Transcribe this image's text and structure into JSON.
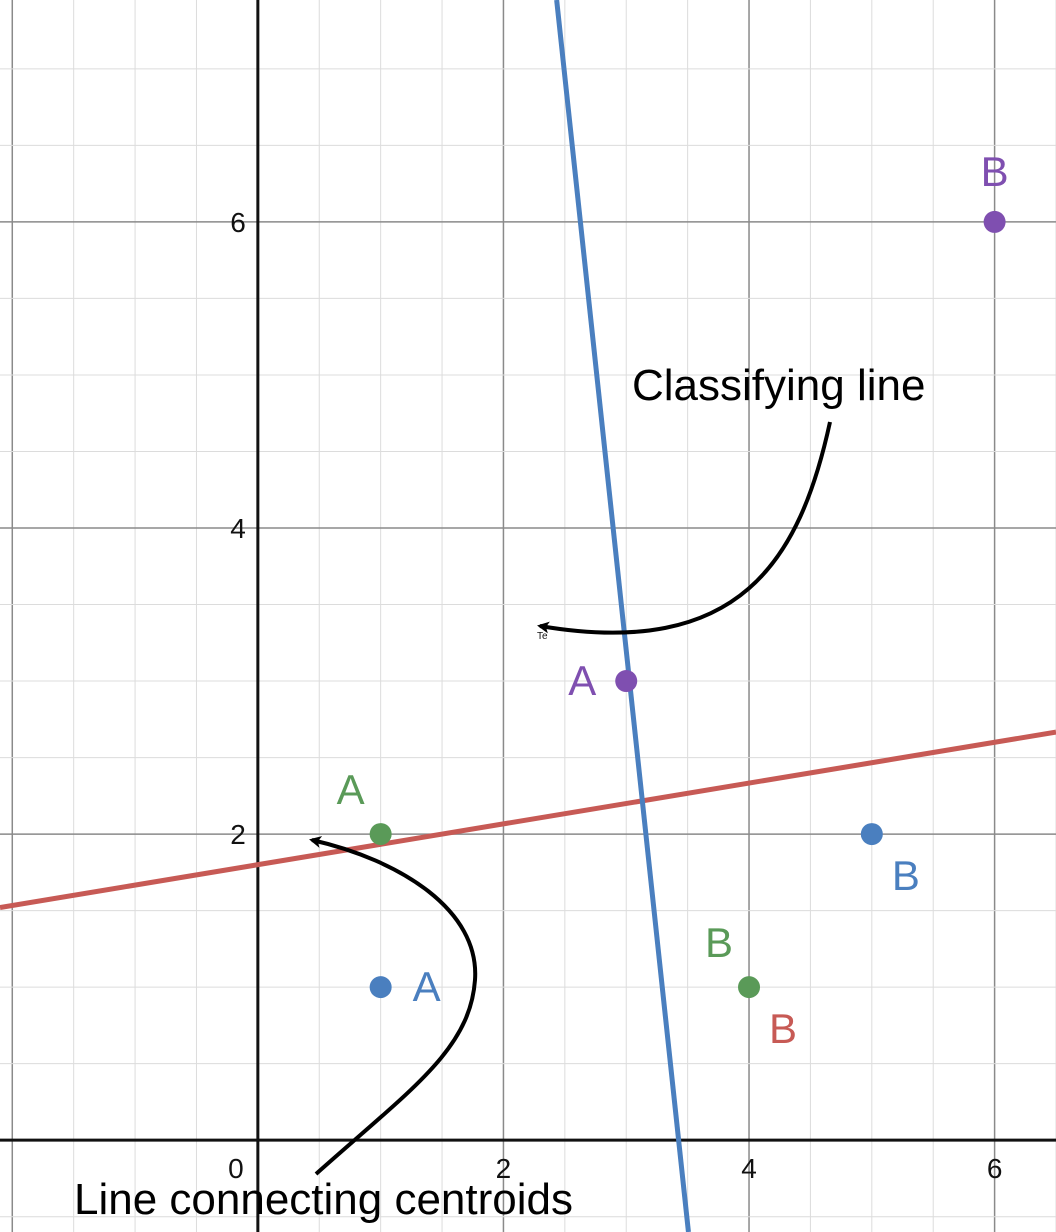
{
  "chart_data": {
    "type": "scatter",
    "xlim": [
      -2.1,
      6.5
    ],
    "ylim": [
      -0.6,
      7.45
    ],
    "x_ticks": [
      0,
      2,
      4,
      6
    ],
    "y_ticks": [
      2,
      4,
      6
    ],
    "x_tick_labels": [
      "0",
      "2",
      "4",
      "6"
    ],
    "y_tick_labels": [
      "2",
      "4",
      "6"
    ],
    "grid": true,
    "minor_grid_step": 0.5,
    "points": [
      {
        "x": 1,
        "y": 1,
        "label": "A",
        "color": "#4a7fbf",
        "label_pos": "right"
      },
      {
        "x": 5,
        "y": 2,
        "label": "B",
        "color": "#4a7fbf",
        "label_pos": "below-right"
      },
      {
        "x": 1,
        "y": 2,
        "label": "A",
        "color": "#5a9a58",
        "label_pos": "above-left"
      },
      {
        "x": 4,
        "y": 1,
        "label": "B",
        "color": "#5a9a58",
        "label_pos": "above-left"
      },
      {
        "x": 3,
        "y": 3,
        "label": "A",
        "color": "#7f4fb0",
        "label_pos": "left"
      },
      {
        "x": 6,
        "y": 6,
        "label": "B",
        "color": "#7f4fb0",
        "label_pos": "above"
      }
    ],
    "extra_labels": [
      {
        "x": 4,
        "y": 1,
        "text": "B",
        "color": "#c75a55",
        "label_pos": "below-right"
      }
    ],
    "lines": [
      {
        "name": "Line connecting centroids",
        "color": "#c75a55",
        "slope": 0.1333,
        "intercept": 1.8
      },
      {
        "name": "Classifying line",
        "color": "#4a7fbf",
        "slope": -7.5,
        "intercept": 25.7
      }
    ],
    "annotations": [
      {
        "text": "Classifying line",
        "target": [
          3.08,
          3.3
        ]
      },
      {
        "text": "Line connecting centroids",
        "target": [
          1.6,
          1.95
        ]
      }
    ],
    "tiny_text": "Te"
  }
}
